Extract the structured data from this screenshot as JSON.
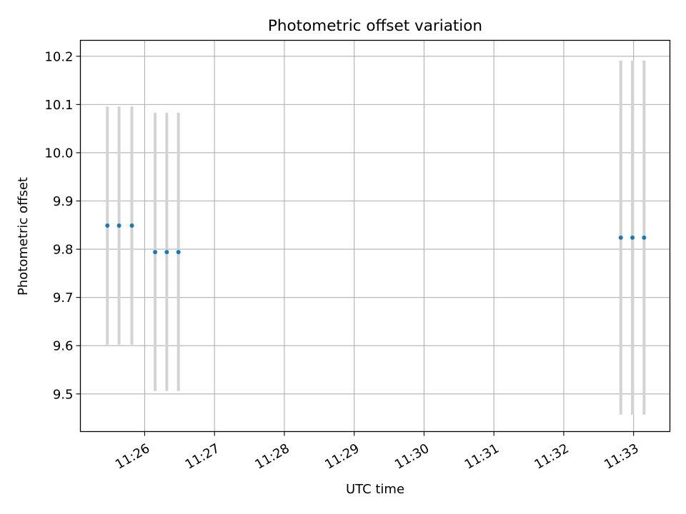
{
  "chart_data": {
    "type": "scatter",
    "title": "Photometric offset variation",
    "xlabel": "UTC time",
    "ylabel": "Photometric offset",
    "x_range_minutes": [
      685.08,
      693.52
    ],
    "ylim": [
      9.422,
      10.233
    ],
    "x_ticks": [
      {
        "minute": 686,
        "label": "11:26"
      },
      {
        "minute": 687,
        "label": "11:27"
      },
      {
        "minute": 688,
        "label": "11:28"
      },
      {
        "minute": 689,
        "label": "11:29"
      },
      {
        "minute": 690,
        "label": "11:30"
      },
      {
        "minute": 691,
        "label": "11:31"
      },
      {
        "minute": 692,
        "label": "11:32"
      },
      {
        "minute": 693,
        "label": "11:33"
      }
    ],
    "y_ticks": [
      {
        "value": 9.5,
        "label": "9.5"
      },
      {
        "value": 9.6,
        "label": "9.6"
      },
      {
        "value": 9.7,
        "label": "9.7"
      },
      {
        "value": 9.8,
        "label": "9.8"
      },
      {
        "value": 9.9,
        "label": "9.9"
      },
      {
        "value": 10.0,
        "label": "10.0"
      },
      {
        "value": 10.1,
        "label": "10.1"
      },
      {
        "value": 10.2,
        "label": "10.2"
      }
    ],
    "grid": true,
    "points": [
      {
        "time": "11:25:28",
        "y": 9.849,
        "ylow": 9.602,
        "yhigh": 10.096
      },
      {
        "time": "11:25:38",
        "y": 9.849,
        "ylow": 9.602,
        "yhigh": 10.096
      },
      {
        "time": "11:25:49",
        "y": 9.849,
        "ylow": 9.602,
        "yhigh": 10.096
      },
      {
        "time": "11:26:09",
        "y": 9.794,
        "ylow": 9.506,
        "yhigh": 10.083
      },
      {
        "time": "11:26:19",
        "y": 9.794,
        "ylow": 9.506,
        "yhigh": 10.083
      },
      {
        "time": "11:26:29",
        "y": 9.794,
        "ylow": 9.506,
        "yhigh": 10.083
      },
      {
        "time": "11:32:49",
        "y": 9.824,
        "ylow": 9.457,
        "yhigh": 10.191
      },
      {
        "time": "11:32:59",
        "y": 9.824,
        "ylow": 9.457,
        "yhigh": 10.191
      },
      {
        "time": "11:33:09",
        "y": 9.824,
        "ylow": 9.457,
        "yhigh": 10.191
      }
    ],
    "colors": {
      "marker": "#1f77b4",
      "errorbar": "#d3d3d3",
      "grid": "#b0b0b0"
    }
  }
}
